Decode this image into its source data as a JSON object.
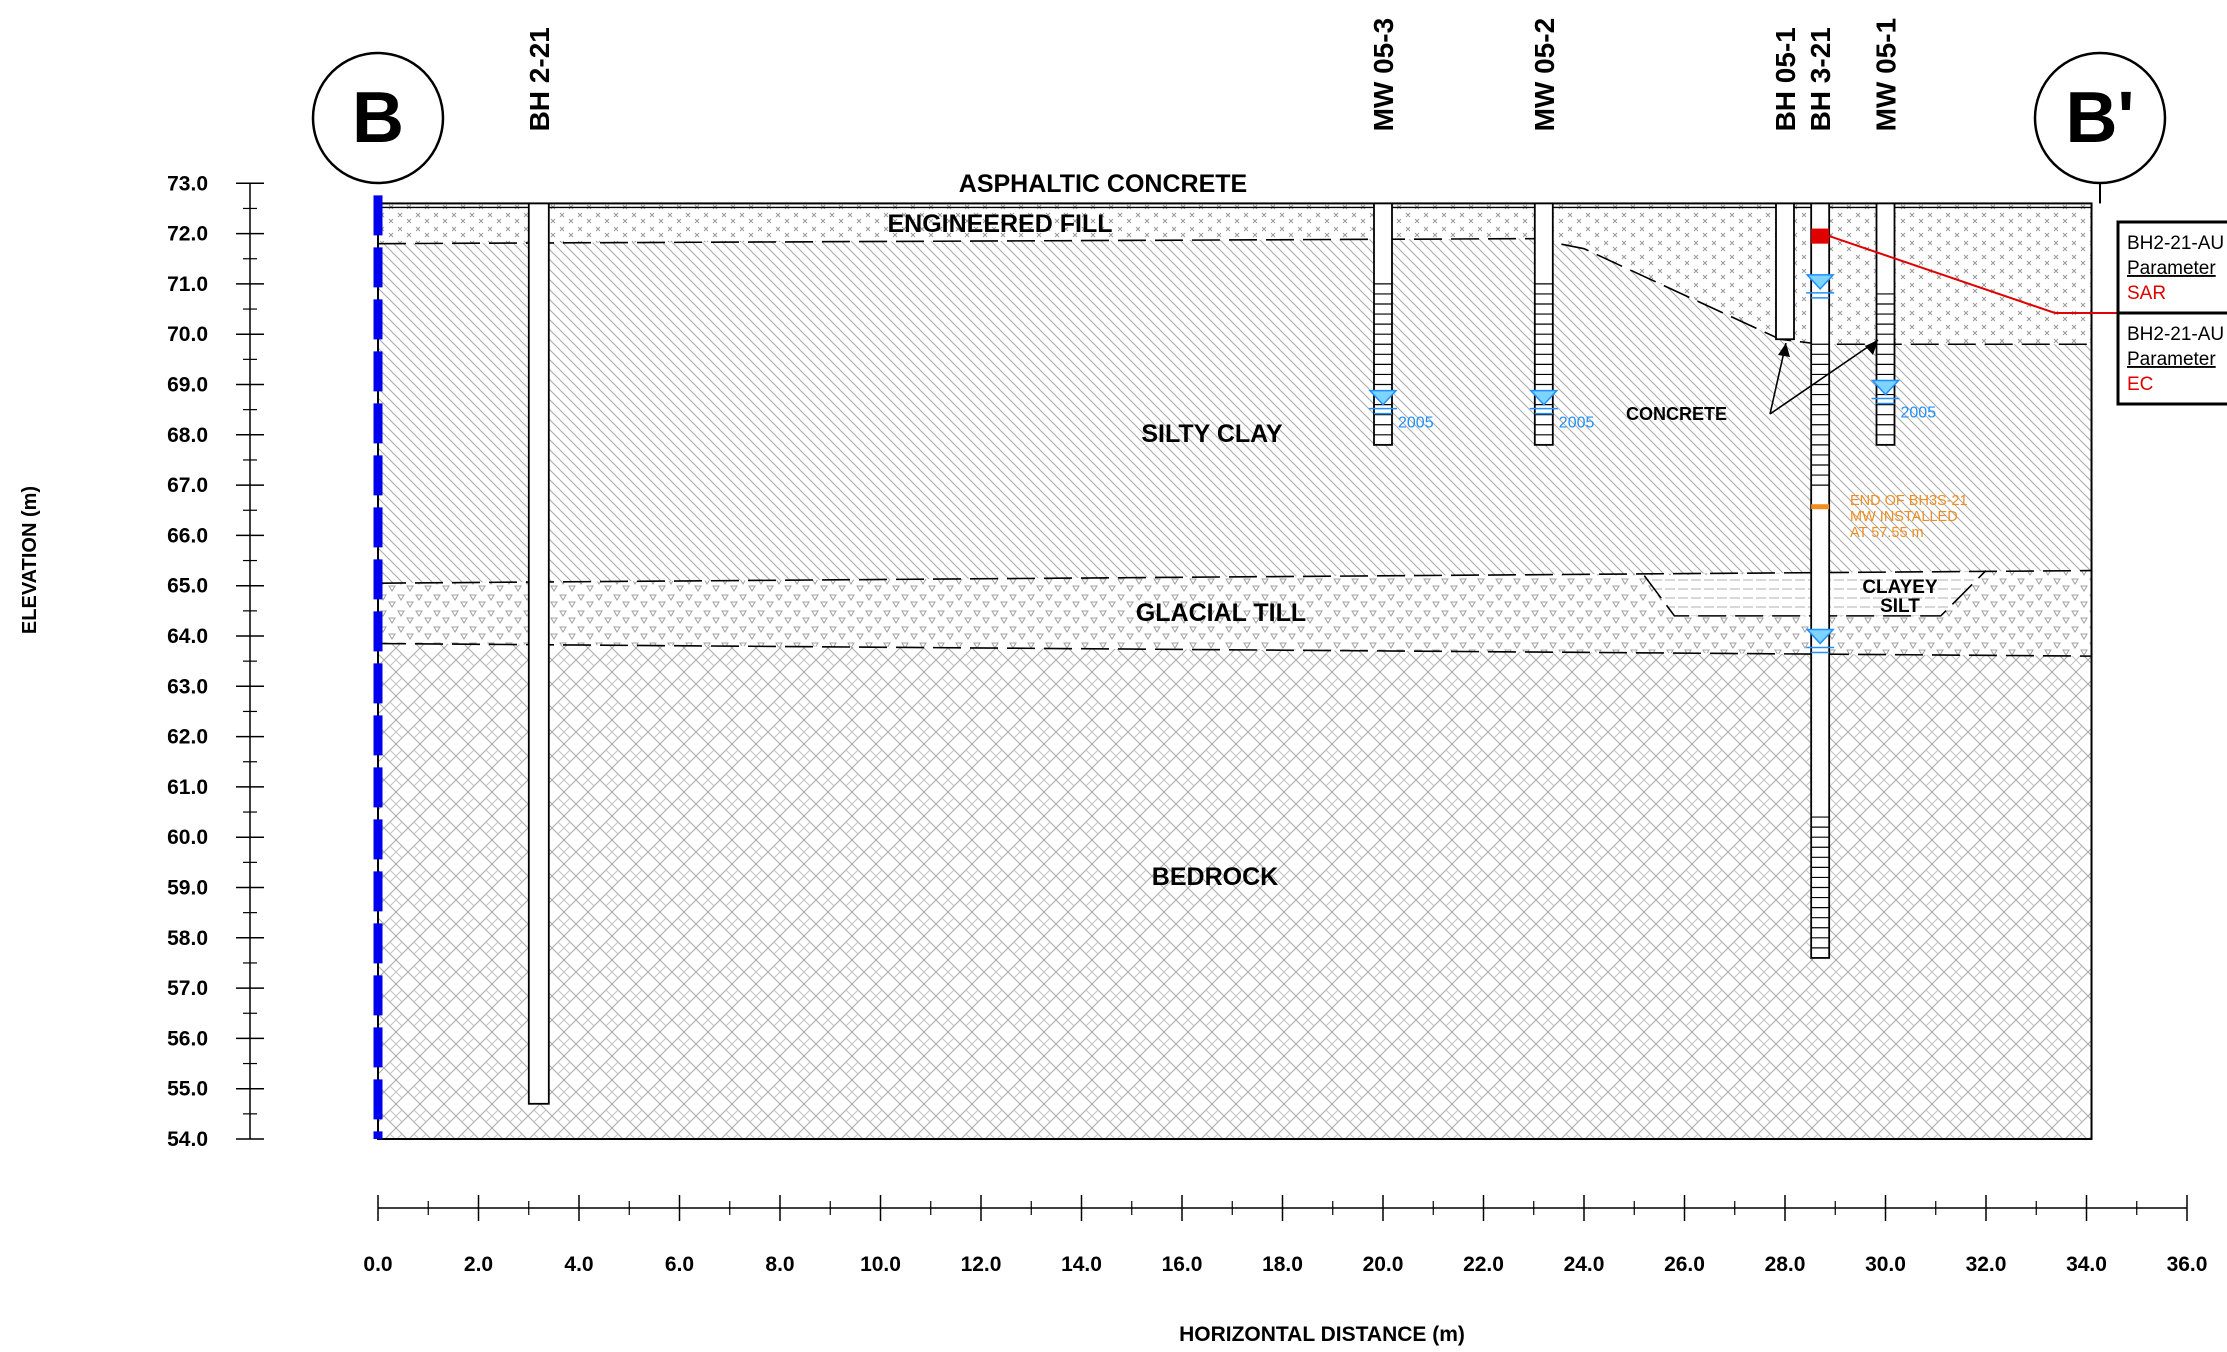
{
  "diagram": {
    "y_axis": {
      "label": "ELEVATION (m)",
      "min": 54.0,
      "max": 73.0,
      "tick_labels": [
        "73.0",
        "72.0",
        "71.0",
        "70.0",
        "69.0",
        "68.0",
        "67.0",
        "66.0",
        "65.0",
        "64.0",
        "63.0",
        "62.0",
        "61.0",
        "60.0",
        "59.0",
        "58.0",
        "57.0",
        "56.0",
        "55.0",
        "54.0"
      ]
    },
    "x_axis": {
      "label": "HORIZONTAL DISTANCE (m)",
      "min": 0.0,
      "max": 36.0,
      "tick_labels": [
        "0.0",
        "2.0",
        "4.0",
        "6.0",
        "8.0",
        "10.0",
        "12.0",
        "14.0",
        "16.0",
        "18.0",
        "20.0",
        "22.0",
        "24.0",
        "26.0",
        "28.0",
        "30.0",
        "32.0",
        "34.0",
        "36.0"
      ]
    },
    "section_markers": {
      "start": "B",
      "end": "B'"
    },
    "layers": [
      {
        "name": "ASPHALTIC CONCRETE"
      },
      {
        "name": "ENGINEERED FILL"
      },
      {
        "name": "SILTY CLAY"
      },
      {
        "name": "CLAYEY SILT"
      },
      {
        "name": "GLACIAL TILL"
      },
      {
        "name": "BEDROCK"
      }
    ],
    "boreholes": [
      {
        "id": "BH 2-21",
        "x": 3.2,
        "top": 72.6,
        "bottom": 54.7
      },
      {
        "id": "MW 05-3",
        "x": 20.0,
        "top": 72.6,
        "bottom": 67.8,
        "screen_top": 71.0,
        "water_level": 68.6,
        "water_year": "2005"
      },
      {
        "id": "MW 05-2",
        "x": 23.2,
        "top": 72.6,
        "bottom": 67.8,
        "screen_top": 71.0,
        "water_level": 68.6,
        "water_year": "2005"
      },
      {
        "id": "BH 05-1",
        "x": 28.0,
        "top": 72.6,
        "bottom": 69.9
      },
      {
        "id": "BH 3-21",
        "x": 28.7,
        "top": 72.6,
        "bottom": 57.6,
        "water_level": 70.9
      },
      {
        "id": "MW 05-1",
        "x": 30.0,
        "top": 72.6,
        "bottom": 67.8,
        "screen_top": 70.8,
        "water_level": 68.8,
        "water_year": "2005"
      }
    ],
    "annotations": {
      "concrete": "CONCRETE",
      "end_note": [
        "END OF BH3S-21",
        "MW INSTALLED",
        "AT 57.55 m"
      ]
    },
    "result_boxes": [
      {
        "sample": "BH2-21-AU",
        "parameter_label": "Parameter",
        "parameter": "SAR"
      },
      {
        "sample": "BH2-21-AU",
        "parameter_label": "Parameter",
        "parameter": "EC"
      }
    ],
    "colors": {
      "water": "#1e90ff",
      "exceedance": "#e00000",
      "note": "#f28c1e",
      "marker": "#0000ee"
    }
  }
}
